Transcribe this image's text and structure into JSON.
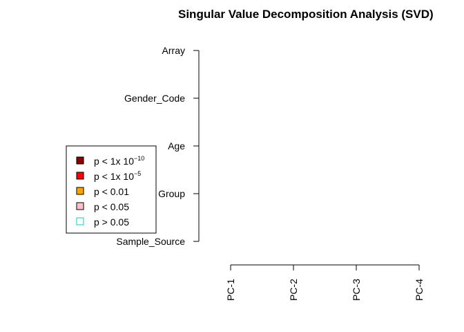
{
  "chart_data": {
    "type": "heatmap",
    "title": "Singular Value Decomposition Analysis (SVD)",
    "xlabel": "",
    "ylabel": "",
    "x_categories": [
      "PC-1",
      "PC-2",
      "PC-3",
      "PC-4"
    ],
    "y_categories": [
      "Sample_Source",
      "Group",
      "Age",
      "Gender_Code",
      "Array"
    ],
    "values": [],
    "legend": {
      "position": "left",
      "entries": [
        {
          "prefix": "p < 1x 10",
          "exponent": "−10",
          "color": "#8B0000",
          "border": "#000000"
        },
        {
          "prefix": "p < 1x 10",
          "exponent": "−5",
          "color": "#FF0000",
          "border": "#000000"
        },
        {
          "prefix": "p < 0.01",
          "exponent": "",
          "color": "#FFA500",
          "border": "#000000"
        },
        {
          "prefix": "p < 0.05",
          "exponent": "",
          "color": "#FFC0CB",
          "border": "#000000"
        },
        {
          "prefix": "p > 0.05",
          "exponent": "",
          "color": "#FFFFFF",
          "border": "#00CED1"
        }
      ]
    }
  }
}
